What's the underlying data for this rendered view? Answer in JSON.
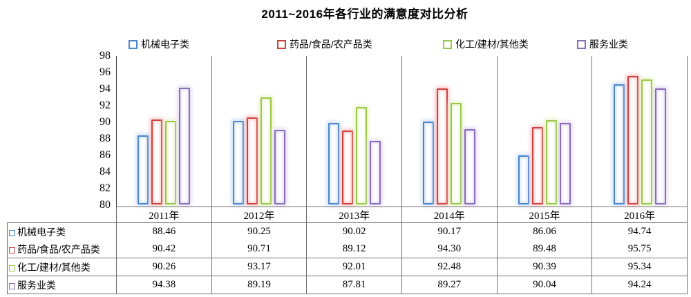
{
  "title": "2011~2016年各行业的满意度对比分析",
  "chart_data": {
    "type": "bar",
    "title": "2011~2016年各行业的满意度对比分析",
    "categories": [
      "2011年",
      "2012年",
      "2013年",
      "2014年",
      "2015年",
      "2016年"
    ],
    "series": [
      {
        "name": "机械电子类",
        "color": "#4a86c8",
        "glow": "#cfe0f6",
        "values": [
          88.46,
          90.25,
          90.02,
          90.17,
          86.06,
          94.74
        ]
      },
      {
        "name": "药品/食品/农产品类",
        "color": "#cc4040",
        "glow": "#f9caca",
        "values": [
          90.42,
          90.71,
          89.12,
          94.3,
          89.48,
          95.75
        ]
      },
      {
        "name": "化工/建材/其他类",
        "color": "#9bc748",
        "glow": "#e9f4cd",
        "values": [
          90.26,
          93.17,
          92.01,
          92.48,
          90.39,
          95.34
        ]
      },
      {
        "name": "服务业类",
        "color": "#8a6cb8",
        "glow": "#e4dcf2",
        "values": [
          94.38,
          89.19,
          87.81,
          89.27,
          90.04,
          94.24
        ]
      }
    ],
    "xlabel": "",
    "ylabel": "",
    "ylim": [
      80,
      98
    ],
    "ytick_step": 2,
    "yticks": [
      98,
      96,
      94,
      92,
      90,
      88,
      86,
      84,
      82,
      80
    ],
    "legend_position": "top",
    "grid": "vertical-category-separators",
    "bar_fill": "#ffffff",
    "value_format": "2-decimals",
    "table_attached": true
  }
}
